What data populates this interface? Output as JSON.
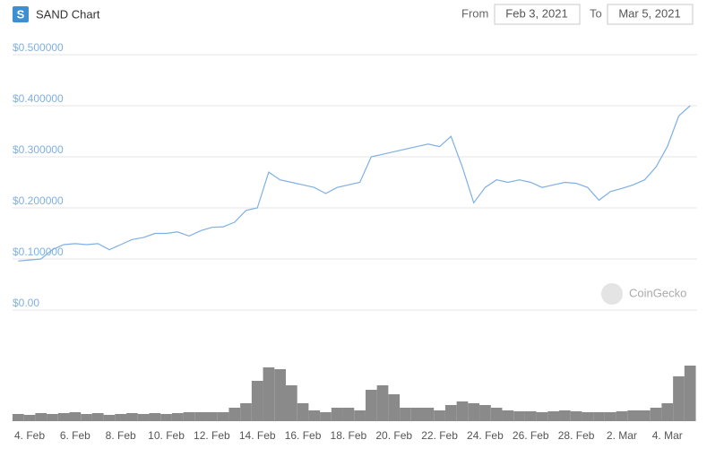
{
  "controls": {
    "logo_letter": "S",
    "from_label": "From",
    "from": "Feb 3, 2021",
    "to_label": "To",
    "to": "Mar 5, 2021",
    "watermark": "CoinGecko"
  },
  "chart_data": [
    {
      "type": "line",
      "title": "SAND Chart",
      "color": "#7fb0e3",
      "categories": [
        null,
        "4. Feb",
        null,
        null,
        null,
        "6. Feb",
        null,
        null,
        null,
        "8. Feb",
        null,
        null,
        null,
        "10. Feb",
        null,
        null,
        null,
        "12. Feb",
        null,
        null,
        null,
        "14. Feb",
        null,
        null,
        null,
        "16. Feb",
        null,
        null,
        null,
        "18. Feb",
        null,
        null,
        null,
        "20. Feb",
        null,
        null,
        null,
        "22. Feb",
        null,
        null,
        null,
        "24. Feb",
        null,
        null,
        null,
        "26. Feb",
        null,
        null,
        null,
        "28. Feb",
        null,
        null,
        null,
        "2. Mar",
        null,
        null,
        null,
        "4. Mar",
        null,
        null
      ],
      "values": [
        0.096,
        0.098,
        0.1,
        0.118,
        0.128,
        0.13,
        0.128,
        0.13,
        0.118,
        0.128,
        0.138,
        0.142,
        0.15,
        0.15,
        0.153,
        0.145,
        0.155,
        0.162,
        0.163,
        0.172,
        0.195,
        0.2,
        0.27,
        0.255,
        0.25,
        0.245,
        0.24,
        0.228,
        0.24,
        0.245,
        0.25,
        0.3,
        0.305,
        0.31,
        0.315,
        0.32,
        0.325,
        0.32,
        0.34,
        0.28,
        0.21,
        0.24,
        0.255,
        0.25,
        0.255,
        0.25,
        0.24,
        0.245,
        0.25,
        0.248,
        0.24,
        0.215,
        0.232,
        0.238,
        0.245,
        0.255,
        0.28,
        0.32,
        0.38,
        0.4
      ],
      "ylim": [
        0,
        0.5
      ],
      "yticks": [
        {
          "value": 0,
          "label": "$0.00"
        },
        {
          "value": 0.1,
          "label": "$0.100000"
        },
        {
          "value": 0.2,
          "label": "$0.200000"
        },
        {
          "value": 0.3,
          "label": "$0.300000"
        },
        {
          "value": 0.4,
          "label": "$0.400000"
        },
        {
          "value": 0.5,
          "label": "$0.500000"
        }
      ],
      "grid": true
    },
    {
      "type": "bar",
      "color": "#8a8a8a",
      "values": [
        8,
        7,
        9,
        8,
        9,
        10,
        8,
        9,
        7,
        8,
        9,
        8,
        9,
        8,
        9,
        10,
        10,
        10,
        10,
        15,
        20,
        45,
        60,
        58,
        40,
        20,
        12,
        10,
        15,
        15,
        12,
        35,
        40,
        30,
        15,
        15,
        15,
        12,
        18,
        22,
        20,
        18,
        15,
        12,
        11,
        11,
        10,
        11,
        12,
        11,
        10,
        10,
        10,
        11,
        12,
        12,
        15,
        20,
        50,
        62
      ]
    }
  ]
}
